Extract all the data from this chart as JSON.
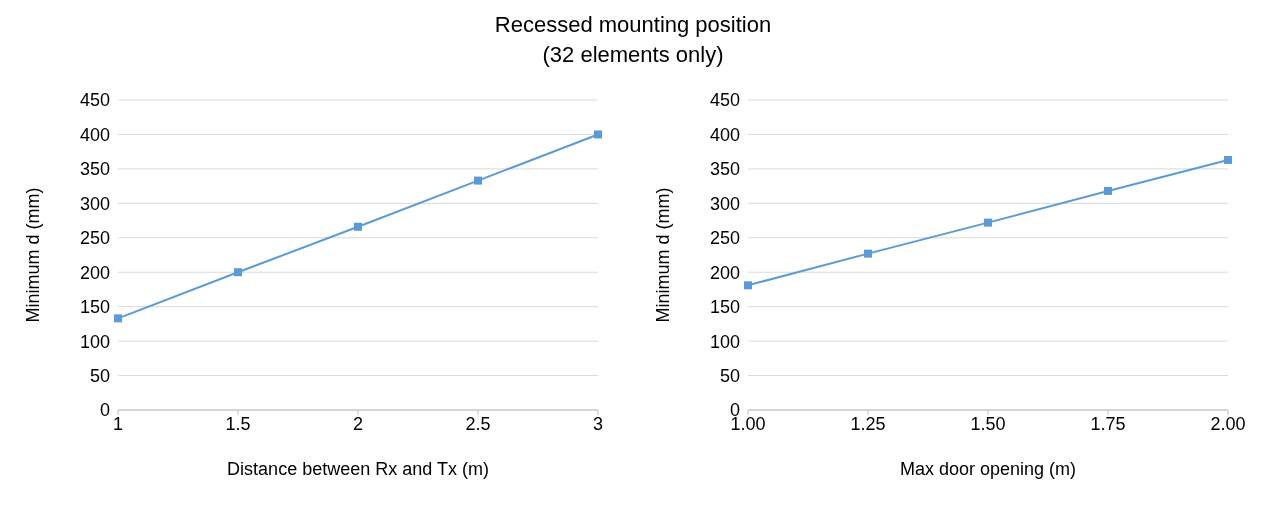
{
  "chart_data": [
    {
      "type": "line",
      "title": "Recessed mounting position",
      "subtitle": "(32 elements only)",
      "xlabel": "Distance between Rx and Tx (m)",
      "ylabel": "Minimum d (mm)",
      "x": [
        1,
        1.5,
        2,
        2.5,
        3
      ],
      "series": [
        {
          "color": "#5b9bd5",
          "values": [
            133,
            200,
            266,
            333,
            400
          ]
        }
      ],
      "xlim": [
        1,
        3
      ],
      "xticks": [
        1,
        1.5,
        2,
        2.5,
        3
      ],
      "ylim": [
        0,
        450
      ],
      "yticks": [
        0,
        50,
        100,
        150,
        200,
        250,
        300,
        350,
        400,
        450
      ],
      "grid": "y",
      "marker": "square",
      "line_style": "solid"
    },
    {
      "type": "line",
      "xlabel": "Max door opening (m)",
      "ylabel": "Minimum d (mm)",
      "x": [
        1,
        1.25,
        1.5,
        1.75,
        2
      ],
      "series": [
        {
          "color": "#5b9bd5",
          "values": [
            181,
            227,
            272,
            318,
            363
          ]
        }
      ],
      "xlim": [
        1,
        2
      ],
      "xticks": [
        {
          "value": 1,
          "label": "1.00"
        },
        {
          "value": 1.25,
          "label": "1.25"
        },
        {
          "value": 1.5,
          "label": "1.50"
        },
        {
          "value": 1.75,
          "label": "1.75"
        },
        {
          "value": 2,
          "label": "2.00"
        }
      ],
      "ylim": [
        0,
        450
      ],
      "yticks": [
        0,
        50,
        100,
        150,
        200,
        250,
        300,
        350,
        400,
        450
      ],
      "grid": "y",
      "marker": "square",
      "line_style": "solid"
    }
  ]
}
